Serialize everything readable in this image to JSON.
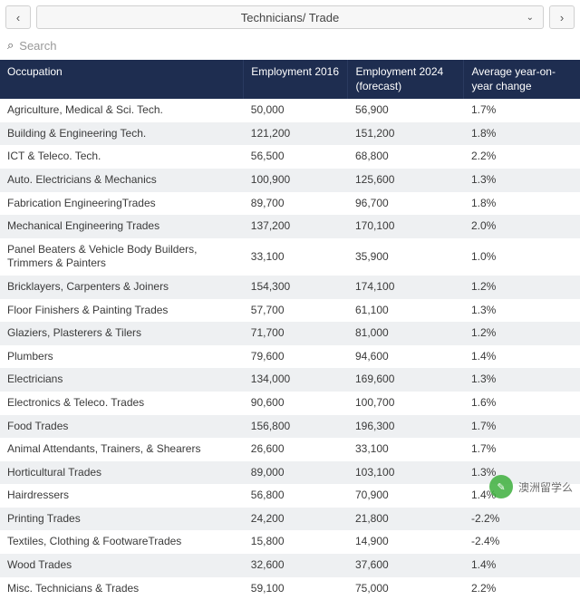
{
  "topbar": {
    "prev_glyph": "‹",
    "next_glyph": "›",
    "dropdown_label": "Technicians/ Trade",
    "dropdown_caret": "⌄"
  },
  "search": {
    "icon_glyph": "⌕",
    "placeholder": "Search"
  },
  "table": {
    "columns": [
      "Occupation",
      "Employment 2016",
      "Employment 2024 (forecast)",
      "Average year-on- year change"
    ],
    "rows": [
      [
        "Agriculture, Medical & Sci. Tech.",
        "50,000",
        "56,900",
        "1.7%"
      ],
      [
        "Building & Engineering Tech.",
        "121,200",
        "151,200",
        "1.8%"
      ],
      [
        "ICT & Teleco. Tech.",
        "56,500",
        "68,800",
        "2.2%"
      ],
      [
        "Auto. Electricians & Mechanics",
        "100,900",
        "125,600",
        "1.3%"
      ],
      [
        "Fabrication EngineeringTrades",
        "89,700",
        "96,700",
        "1.8%"
      ],
      [
        "Mechanical Engineering Trades",
        "137,200",
        "170,100",
        "2.0%"
      ],
      [
        "Panel Beaters & Vehicle Body Builders, Trimmers & Painters",
        "33,100",
        "35,900",
        "1.0%"
      ],
      [
        "Bricklayers, Carpenters & Joiners",
        "154,300",
        "174,100",
        "1.2%"
      ],
      [
        "Floor Finishers & Painting Trades",
        "57,700",
        "61,100",
        "1.3%"
      ],
      [
        "Glaziers, Plasterers & Tilers",
        "71,700",
        "81,000",
        "1.2%"
      ],
      [
        "Plumbers",
        "79,600",
        "94,600",
        "1.4%"
      ],
      [
        "Electricians",
        "134,000",
        "169,600",
        "1.3%"
      ],
      [
        "Electronics & Teleco. Trades",
        "90,600",
        "100,700",
        "1.6%"
      ],
      [
        "Food Trades",
        "156,800",
        "196,300",
        "1.7%"
      ],
      [
        "Animal Attendants, Trainers, & Shearers",
        "26,600",
        "33,100",
        "1.7%"
      ],
      [
        "Horticultural Trades",
        "89,000",
        "103,100",
        "1.3%"
      ],
      [
        "Hairdressers",
        "56,800",
        "70,900",
        "1.4%"
      ],
      [
        "Printing Trades",
        "24,200",
        "21,800",
        "-2.2%"
      ],
      [
        "Textiles, Clothing & FootwareTrades",
        "15,800",
        "14,900",
        "-2.4%"
      ],
      [
        "Wood Trades",
        "32,600",
        "37,600",
        "1.4%"
      ],
      [
        "Misc. Technicians & Trades",
        "59,100",
        "75,000",
        "2.2%"
      ]
    ]
  },
  "watermark": {
    "text": "澳洲留学么",
    "glyph": "✎"
  },
  "colors": {
    "header_bg": "#1e2d50",
    "header_text": "#ffffff",
    "row_alt_bg": "#eef0f2",
    "row_bg": "#ffffff",
    "border": "#d0d0d0",
    "text": "#3a3a3a"
  }
}
